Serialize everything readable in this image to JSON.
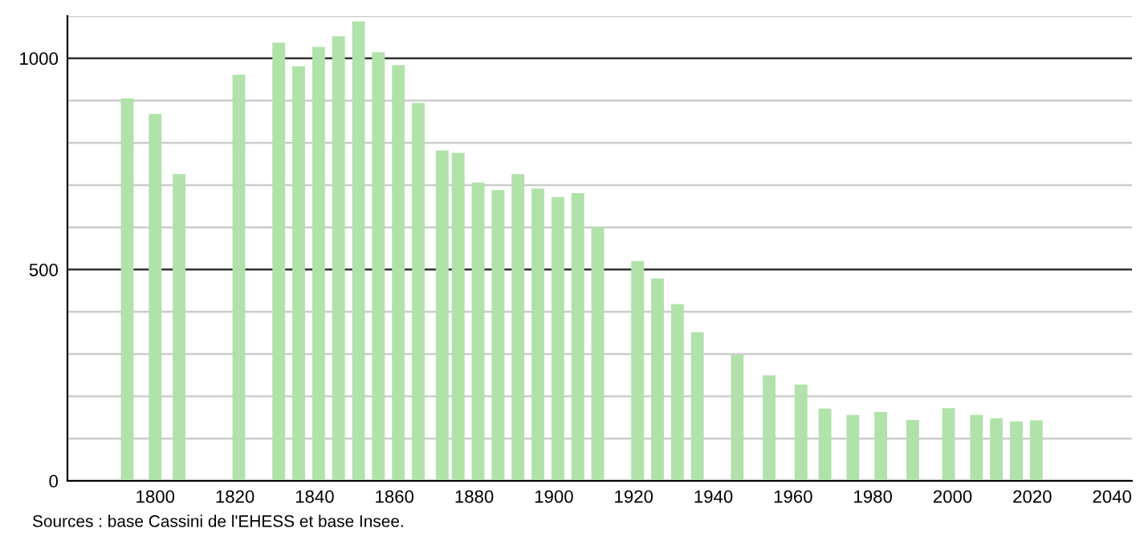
{
  "chart_data": {
    "type": "bar",
    "x": [
      1793,
      1800,
      1806,
      1821,
      1831,
      1836,
      1841,
      1846,
      1851,
      1856,
      1861,
      1866,
      1872,
      1876,
      1881,
      1886,
      1891,
      1896,
      1901,
      1906,
      1911,
      1921,
      1926,
      1931,
      1936,
      1946,
      1954,
      1962,
      1968,
      1975,
      1982,
      1990,
      1999,
      2006,
      2011,
      2016,
      2021
    ],
    "values": [
      905,
      868,
      726,
      961,
      1037,
      981,
      1027,
      1052,
      1087,
      1014,
      984,
      894,
      782,
      776,
      706,
      688,
      726,
      692,
      672,
      681,
      600,
      520,
      479,
      418,
      352,
      298,
      250,
      228,
      171,
      156,
      163,
      144,
      172,
      156,
      148,
      141,
      143
    ],
    "color": "#b0e2aa",
    "xlim": [
      1778,
      2045
    ],
    "xticks": [
      1800,
      1820,
      1840,
      1860,
      1880,
      1900,
      1920,
      1940,
      1960,
      1980,
      2000,
      2020,
      2040
    ],
    "ylim": [
      0,
      1100
    ],
    "yticks": [
      0,
      {
        "value": 100,
        "label": null
      },
      {
        "value": 200,
        "label": null
      },
      {
        "value": 300,
        "label": null
      },
      {
        "value": 400,
        "label": null
      },
      500,
      {
        "value": 600,
        "label": null
      },
      {
        "value": 700,
        "label": null
      },
      {
        "value": 800,
        "label": null
      },
      {
        "value": 900,
        "label": null
      },
      1000,
      {
        "value": 1100,
        "label": null
      }
    ],
    "grid": "y",
    "annotations": [
      "Sources : base Cassini de l'EHESS et base Insee."
    ]
  }
}
